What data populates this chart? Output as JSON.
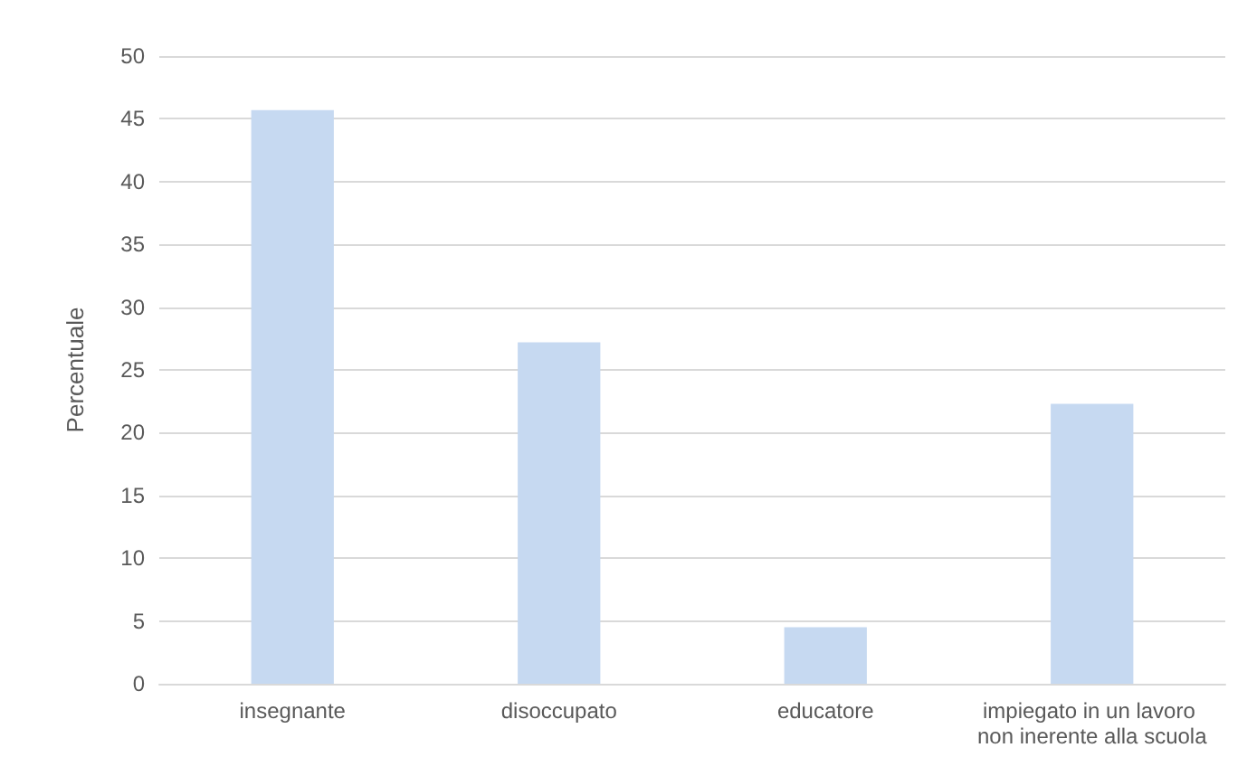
{
  "chart_data": {
    "type": "bar",
    "ylabel": "Percentuale",
    "categories": [
      "insegnante",
      "disoccupato",
      "educatore",
      "impiegato in un lavoro non inerente alla scuola"
    ],
    "values": [
      45.7,
      27.2,
      4.5,
      22.3
    ],
    "color": "#c6d9f1",
    "ylim": [
      0,
      50
    ],
    "yticks": [
      0,
      5,
      10,
      15,
      20,
      25,
      30,
      35,
      40,
      45,
      50
    ],
    "grid": "y"
  }
}
